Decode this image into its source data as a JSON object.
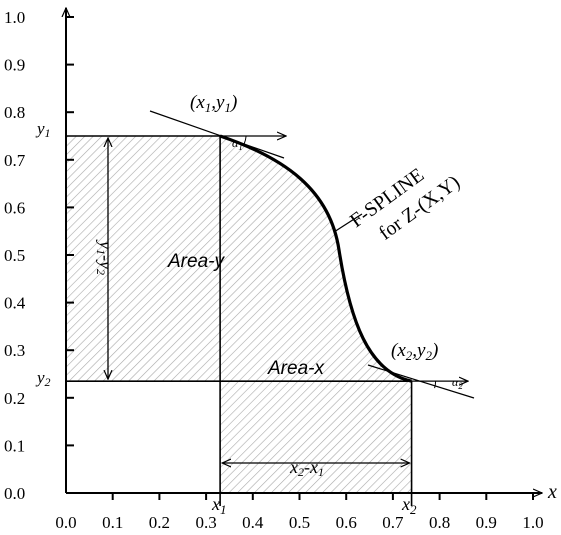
{
  "diagram": {
    "x_axis": {
      "label": "x",
      "range": [
        0.0,
        1.0
      ],
      "ticks": [
        "0.0",
        "0.1",
        "0.2",
        "0.3",
        "0.4",
        "0.5",
        "0.6",
        "0.7",
        "0.8",
        "0.9",
        "1.0"
      ]
    },
    "y_axis": {
      "range": [
        0.0,
        1.0
      ],
      "ticks": [
        "0.0",
        "0.1",
        "0.2",
        "0.3",
        "0.4",
        "0.5",
        "0.6",
        "0.7",
        "0.8",
        "0.9",
        "1.0"
      ]
    },
    "point1": {
      "label": "(x1,y1)",
      "x": 0.33,
      "y": 0.75
    },
    "point2": {
      "label": "(x2,y2)",
      "x": 0.74,
      "y": 0.235
    },
    "labels": {
      "y1": "y1",
      "y2": "y2",
      "x1": "x1",
      "x2": "x2",
      "alpha1": "α1",
      "alpha2": "α2",
      "area_y": "Area-y",
      "area_x": "Area-x",
      "y_diff": "y1-y2",
      "x_diff": "x2-x1",
      "spline_line1": "F-SPLINE",
      "spline_line2": "for Z-(X,Y)"
    }
  }
}
